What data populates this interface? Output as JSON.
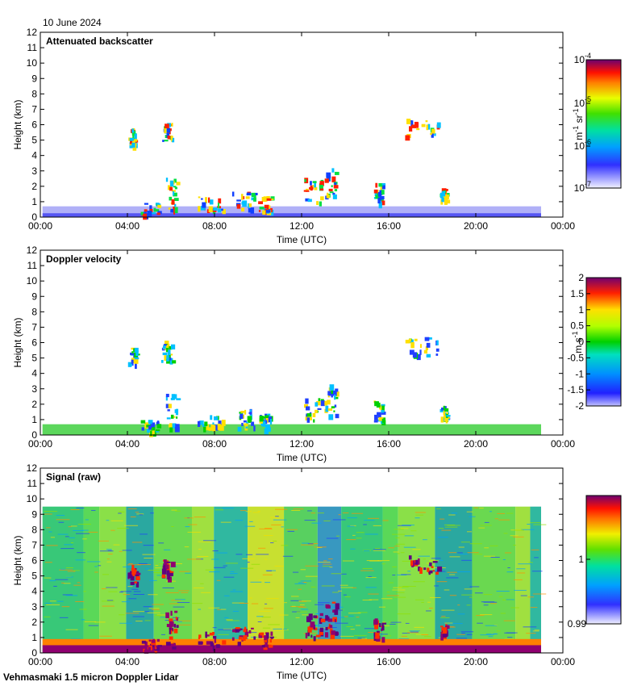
{
  "date": "10 June 2024",
  "footer": "Vehmasmaki 1.5 micron Doppler Lidar",
  "x_tick_labels": [
    "00:00",
    "04:00",
    "08:00",
    "12:00",
    "16:00",
    "20:00",
    "00:00"
  ],
  "y_tick_labels": [
    "0",
    "1",
    "2",
    "3",
    "4",
    "5",
    "6",
    "7",
    "8",
    "9",
    "10",
    "11",
    "12"
  ],
  "xlabel": "Time (UTC)",
  "ylabel": "Height (km)",
  "chart_data": [
    {
      "type": "heatmap",
      "title": "Attenuated backscatter",
      "xlabel": "Time (UTC)",
      "ylabel": "Height (km)",
      "xlim": [
        0,
        24
      ],
      "ylim": [
        0,
        12
      ],
      "colorbar": {
        "scale": "log",
        "range": [
          1e-07,
          0.0001
        ],
        "tick_labels": [
          "10",
          "10",
          "10",
          "10"
        ],
        "tick_exponents": [
          "-7",
          "-6",
          "-5",
          "-4"
        ],
        "tick_values": [
          1e-07,
          1e-06,
          1e-05,
          0.0001
        ],
        "unit_label": "m sr",
        "unit_exponents": [
          "-1",
          "-1"
        ]
      },
      "features": [
        {
          "desc": "boundary layer",
          "t": [
            0,
            23
          ],
          "h": [
            0,
            0.8
          ]
        },
        {
          "desc": "low clouds",
          "t": [
            4.5,
            14
          ],
          "h": [
            0.3,
            3.5
          ]
        },
        {
          "desc": "mid-level cloud",
          "t": [
            4,
            6.5
          ],
          "h": [
            4.5,
            6.5
          ]
        },
        {
          "desc": "mid-level cloud",
          "t": [
            17,
            19
          ],
          "h": [
            4.5,
            7
          ]
        }
      ]
    },
    {
      "type": "heatmap",
      "title": "Doppler velocity",
      "xlabel": "Time (UTC)",
      "ylabel": "Height (km)",
      "xlim": [
        0,
        24
      ],
      "ylim": [
        0,
        12
      ],
      "colorbar": {
        "scale": "linear",
        "range": [
          -2,
          2
        ],
        "tick_labels": [
          "2",
          "1.5",
          "1",
          "0.5",
          "0",
          "-0.5",
          "-1",
          "-1.5",
          "-2"
        ],
        "tick_values": [
          2,
          1.5,
          1,
          0.5,
          0,
          -0.5,
          -1,
          -1.5,
          -2
        ],
        "unit_label": "m s",
        "unit_exponents": [
          "-1"
        ]
      }
    },
    {
      "type": "heatmap",
      "title": "Signal (raw)",
      "xlabel": "Time (UTC)",
      "ylabel": "Height (km)",
      "xlim": [
        0,
        24
      ],
      "ylim": [
        0,
        12
      ],
      "data_top_km": 9.5,
      "data_end_hour": 23,
      "colorbar": {
        "scale": "linear",
        "tick_labels": [
          "1",
          "0.99"
        ],
        "tick_values": [
          1,
          0.99
        ]
      }
    }
  ]
}
